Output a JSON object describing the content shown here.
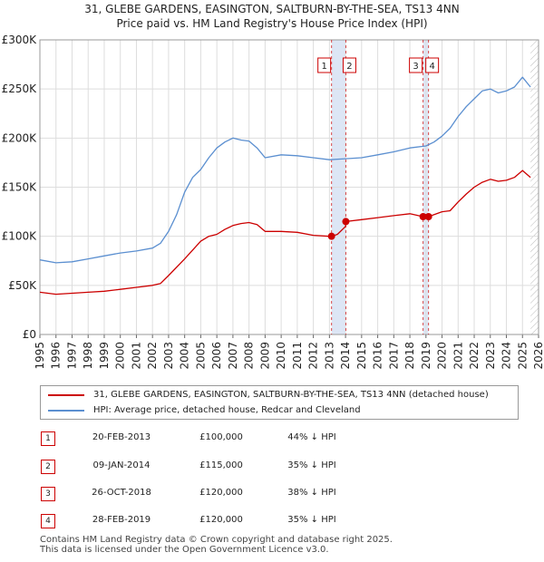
{
  "title_line1": "31, GLEBE GARDENS, EASINGTON, SALTBURN-BY-THE-SEA, TS13 4NN",
  "title_line2": "Price paid vs. HM Land Registry's House Price Index (HPI)",
  "legend": {
    "property": "31, GLEBE GARDENS, EASINGTON, SALTBURN-BY-THE-SEA, TS13 4NN (detached house)",
    "hpi": "HPI: Average price, detached house, Redcar and Cleveland"
  },
  "colors": {
    "property": "#cc0000",
    "hpi": "#5b8fd0",
    "grid": "#dddddd",
    "highlight": "#dde6f5"
  },
  "sales": [
    {
      "num": "1",
      "date": "20-FEB-2013",
      "price": "£100,000",
      "hpi": "44% ↓ HPI"
    },
    {
      "num": "2",
      "date": "09-JAN-2014",
      "price": "£115,000",
      "hpi": "35% ↓ HPI"
    },
    {
      "num": "3",
      "date": "26-OCT-2018",
      "price": "£120,000",
      "hpi": "38% ↓ HPI"
    },
    {
      "num": "4",
      "date": "28-FEB-2019",
      "price": "£120,000",
      "hpi": "35% ↓ HPI"
    }
  ],
  "footer": {
    "line1": "Contains HM Land Registry data © Crown copyright and database right 2025.",
    "line2": "This data is licensed under the Open Government Licence v3.0."
  },
  "chart_data": {
    "type": "line",
    "ylim": [
      0,
      300000
    ],
    "xlim": [
      1995,
      2026
    ],
    "y_ticks": [
      {
        "value": 0,
        "label": "£0"
      },
      {
        "value": 50000,
        "label": "£50K"
      },
      {
        "value": 100000,
        "label": "£100K"
      },
      {
        "value": 150000,
        "label": "£150K"
      },
      {
        "value": 200000,
        "label": "£200K"
      },
      {
        "value": 250000,
        "label": "£250K"
      },
      {
        "value": 300000,
        "label": "£300K"
      }
    ],
    "x_ticks": [
      "1995",
      "1996",
      "1997",
      "1998",
      "1999",
      "2000",
      "2001",
      "2002",
      "2003",
      "2004",
      "2005",
      "2006",
      "2007",
      "2008",
      "2009",
      "2010",
      "2011",
      "2012",
      "2013",
      "2014",
      "2015",
      "2016",
      "2017",
      "2018",
      "2019",
      "2020",
      "2021",
      "2022",
      "2023",
      "2024",
      "2025",
      "2026"
    ],
    "sale_markers": [
      {
        "label": "1",
        "year": 2013.13,
        "value": 100000
      },
      {
        "label": "2",
        "year": 2014.02,
        "value": 115000
      },
      {
        "label": "3",
        "year": 2018.82,
        "value": 120000
      },
      {
        "label": "4",
        "year": 2019.16,
        "value": 120000
      }
    ],
    "highlight_ranges": [
      [
        2013.13,
        2014.02
      ],
      [
        2018.82,
        2019.16
      ]
    ],
    "future_hatch_from": 2025.5,
    "series": [
      {
        "name": "31, GLEBE GARDENS, EASINGTON, SALTBURN-BY-THE-SEA, TS13 4NN (detached house)",
        "x": [
          1995,
          1996,
          1997,
          1998,
          1999,
          2000,
          2001,
          2002,
          2002.5,
          2003,
          2004,
          2005,
          2005.5,
          2006,
          2006.5,
          2007,
          2007.5,
          2008,
          2008.5,
          2009,
          2010,
          2011,
          2012,
          2013,
          2013.13,
          2013.5,
          2014,
          2014.02,
          2015,
          2016,
          2017,
          2018,
          2018.82,
          2019,
          2019.16,
          2020,
          2020.5,
          2021,
          2021.5,
          2022,
          2022.5,
          2023,
          2023.5,
          2024,
          2024.5,
          2025,
          2025.5
        ],
        "values": [
          43000,
          41000,
          42000,
          43000,
          44000,
          46000,
          48000,
          50000,
          52000,
          60000,
          77000,
          95000,
          100000,
          102000,
          107000,
          111000,
          113000,
          114000,
          112000,
          105000,
          105000,
          104000,
          101000,
          100000,
          100000,
          102000,
          110000,
          115000,
          117000,
          119000,
          121000,
          123000,
          120000,
          122000,
          120000,
          125000,
          126000,
          135000,
          143000,
          150000,
          155000,
          158000,
          156000,
          157000,
          160000,
          167000,
          160000
        ]
      },
      {
        "name": "HPI: Average price, detached house, Redcar and Cleveland",
        "x": [
          1995,
          1996,
          1997,
          1998,
          1999,
          2000,
          2001,
          2002,
          2002.5,
          2003,
          2003.5,
          2004,
          2004.5,
          2005,
          2005.5,
          2006,
          2006.5,
          2007,
          2007.5,
          2008,
          2008.5,
          2009,
          2010,
          2011,
          2012,
          2013,
          2014,
          2015,
          2016,
          2017,
          2018,
          2019,
          2019.5,
          2020,
          2020.5,
          2021,
          2021.5,
          2022,
          2022.5,
          2023,
          2023.5,
          2024,
          2024.5,
          2025,
          2025.5
        ],
        "values": [
          76000,
          73000,
          74000,
          77000,
          80000,
          83000,
          85000,
          88000,
          93000,
          105000,
          122000,
          145000,
          160000,
          168000,
          180000,
          190000,
          196000,
          200000,
          198000,
          197000,
          190000,
          180000,
          183000,
          182000,
          180000,
          178000,
          179000,
          180000,
          183000,
          186000,
          190000,
          192000,
          196000,
          202000,
          210000,
          222000,
          232000,
          240000,
          248000,
          250000,
          246000,
          248000,
          252000,
          262000,
          252000
        ]
      }
    ]
  }
}
